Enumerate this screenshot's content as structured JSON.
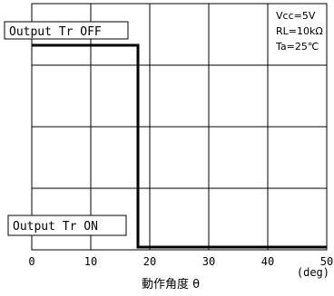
{
  "chart_data": {
    "type": "line",
    "x": [
      0,
      18,
      18,
      50
    ],
    "series": [
      {
        "values": [
          1,
          1,
          0,
          0
        ]
      }
    ],
    "xlim": [
      0,
      50
    ],
    "xticks": [
      0,
      10,
      20,
      30,
      40,
      50
    ],
    "xlabel": "動作角度 θ",
    "xunit": "(deg)",
    "state_labels": {
      "off": "Output Tr OFF",
      "on": "Output Tr ON"
    },
    "conditions": [
      "Vcc=5V",
      "RL=10kΩ",
      "Ta=25℃"
    ],
    "grid": true
  }
}
